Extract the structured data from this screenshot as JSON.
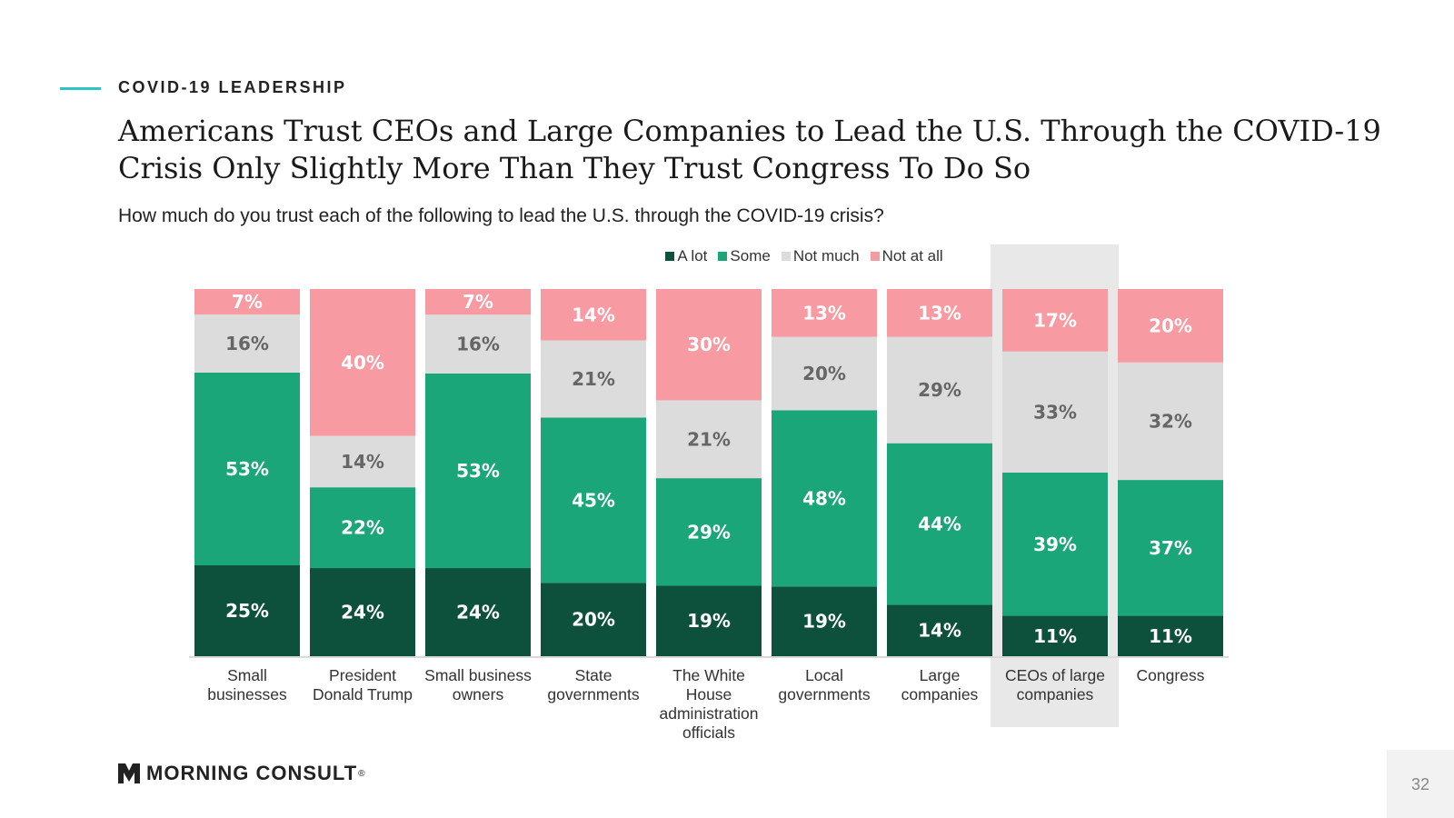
{
  "header": {
    "section_label": "COVID-19 LEADERSHIP",
    "title": "Americans Trust CEOs and Large Companies to Lead the U.S. Through the COVID-19 Crisis Only Slightly More Than They Trust Congress To Do So",
    "question": "How much do you trust each of the following to lead the U.S. through the COVID-19 crisis?"
  },
  "legend": [
    {
      "label": "A lot",
      "color": "#0d513d"
    },
    {
      "label": "Some",
      "color": "#1aa679"
    },
    {
      "label": "Not much",
      "color": "#dcdcdc"
    },
    {
      "label": "Not at all",
      "color": "#f89aa2"
    }
  ],
  "colors": {
    "highlight": "#e8e8e8",
    "label_light": "#ffffff",
    "label_dark": "#666666"
  },
  "chart_data": {
    "type": "bar",
    "stacked": true,
    "percent_stacked": true,
    "title": "",
    "xlabel": "",
    "ylabel": "",
    "ylim": [
      0,
      100
    ],
    "grid": false,
    "legend_position": "top-center",
    "highlighted_category": "CEOs of large companies",
    "categories": [
      "Small businesses",
      "President Donald Trump",
      "Small business owners",
      "State governments",
      "The White House administration officials",
      "Local governments",
      "Large companies",
      "CEOs of large companies",
      "Congress"
    ],
    "series": [
      {
        "name": "A lot",
        "values": [
          25,
          24,
          24,
          20,
          19,
          19,
          14,
          11,
          11
        ]
      },
      {
        "name": "Some",
        "values": [
          53,
          22,
          53,
          45,
          29,
          48,
          44,
          39,
          37
        ]
      },
      {
        "name": "Not much",
        "values": [
          16,
          14,
          16,
          21,
          21,
          20,
          29,
          33,
          32
        ]
      },
      {
        "name": "Not at all",
        "values": [
          7,
          40,
          7,
          14,
          30,
          13,
          13,
          17,
          20
        ]
      }
    ]
  },
  "category_labels": [
    "Small\nbusinesses",
    "President\nDonald Trump",
    "Small business\nowners",
    "State\ngovernments",
    "The White\nHouse\nadministration\nofficials",
    "Local\ngovernments",
    "Large\ncompanies",
    "CEOs of large\ncompanies",
    "Congress"
  ],
  "footer": {
    "logo_text": "MORNING CONSULT",
    "logo_reg": "®",
    "page_number": "32"
  }
}
